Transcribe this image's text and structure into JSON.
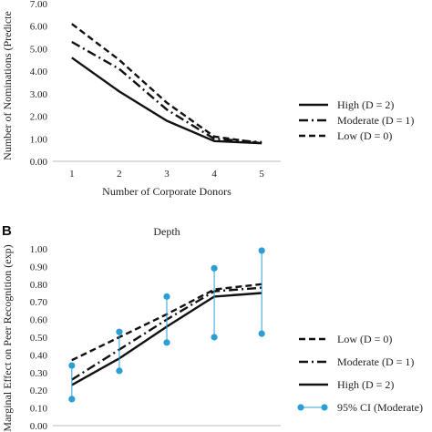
{
  "chart_data": [
    {
      "type": "line",
      "panel_label": "",
      "title": "",
      "xlabel": "Number of Corporate Donors",
      "ylabel": "Number of Nominations (Predicte",
      "x": [
        1,
        2,
        3,
        4,
        5
      ],
      "xlim": [
        0.6,
        5.4
      ],
      "ylim": [
        0,
        7
      ],
      "yticks": [
        "0.00",
        "1.00",
        "2.00",
        "3.00",
        "4.00",
        "5.00",
        "6.00",
        "7.00"
      ],
      "grid": false,
      "legend_position": "right",
      "series": [
        {
          "name": "High (D = 2)",
          "style": "solid",
          "values": [
            4.6,
            3.1,
            1.8,
            0.9,
            0.8
          ]
        },
        {
          "name": "Moderate (D = 1)",
          "style": "dash-dot",
          "values": [
            5.3,
            4.1,
            2.3,
            1.0,
            0.85
          ]
        },
        {
          "name": "Low (D = 0)",
          "style": "dashed",
          "values": [
            6.1,
            4.5,
            2.6,
            1.1,
            0.8
          ]
        }
      ]
    },
    {
      "type": "line",
      "panel_label": "B",
      "title": "Depth",
      "xlabel": "",
      "ylabel": "Marginal Effect on Peer Recognition (exp)",
      "x": [
        1,
        2,
        3,
        4,
        5
      ],
      "xlim": [
        0.6,
        5.4
      ],
      "ylim": [
        0,
        1
      ],
      "yticks": [
        "0.00",
        "0.10",
        "0.20",
        "0.30",
        "0.40",
        "0.50",
        "0.60",
        "0.70",
        "0.80",
        "0.90",
        "1.00"
      ],
      "grid": false,
      "legend_position": "right",
      "series": [
        {
          "name": "Low (D = 0)",
          "style": "dashed",
          "values": [
            0.37,
            0.5,
            0.63,
            0.77,
            0.8
          ]
        },
        {
          "name": "Moderate (D = 1)",
          "style": "dash-dot",
          "values": [
            0.26,
            0.43,
            0.6,
            0.76,
            0.78
          ]
        },
        {
          "name": "High (D = 2)",
          "style": "solid",
          "values": [
            0.23,
            0.38,
            0.56,
            0.73,
            0.75
          ]
        }
      ],
      "ci": {
        "name": "95% CI (Moderate)",
        "color": "#2b9fd4",
        "lower": [
          0.15,
          0.31,
          0.47,
          0.5,
          0.52
        ],
        "upper": [
          0.34,
          0.53,
          0.73,
          0.89,
          0.99
        ]
      }
    }
  ]
}
